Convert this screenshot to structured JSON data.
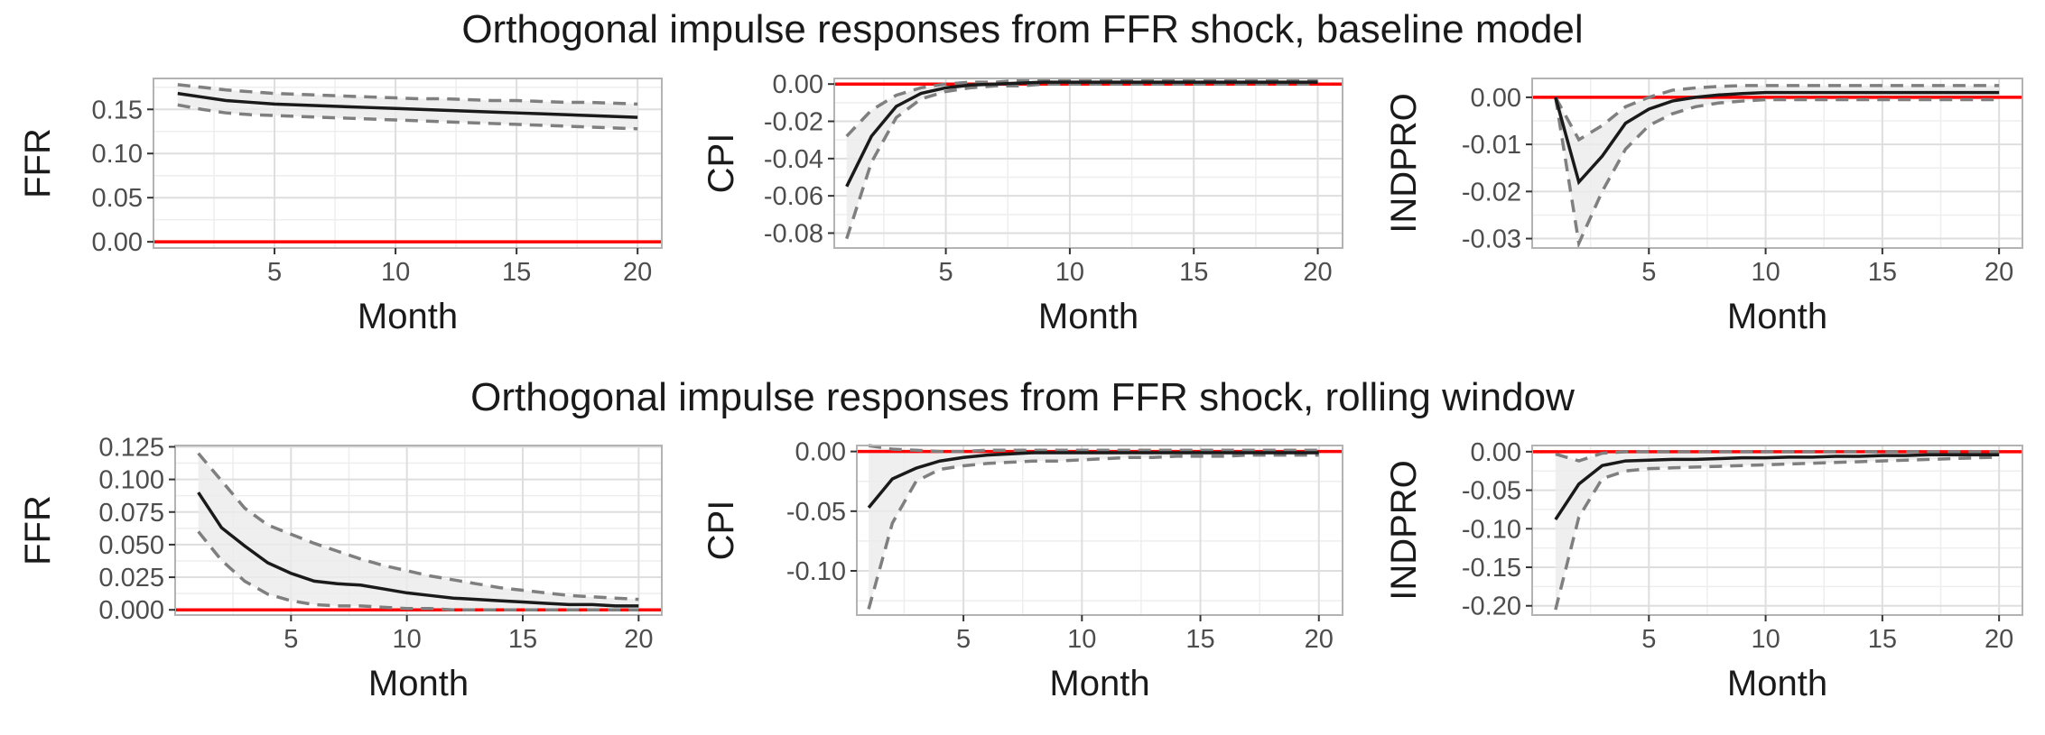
{
  "titles": {
    "top": "Orthogonal impulse responses from FFR shock, baseline model",
    "bottom": "Orthogonal impulse responses from FFR shock, rolling window"
  },
  "colors": {
    "panel_border": "#b3b3b3",
    "grid_major": "#dedede",
    "grid_minor": "#eeeeee",
    "band_fill": "#ebebeb",
    "response_line": "#1a1a1a",
    "ci_line": "#7f7f7f",
    "zero_line": "#ff0000"
  },
  "chart_data": [
    {
      "type": "line",
      "row": "top",
      "xlabel": "Month",
      "ylabel": "FFR",
      "xlim": [
        0,
        21
      ],
      "ylim": [
        -0.007,
        0.185
      ],
      "x_ticks": [
        5,
        10,
        15,
        20
      ],
      "x_tick_labels": [
        "5",
        "10",
        "15",
        "20"
      ],
      "y_ticks": [
        0,
        0.05,
        0.1,
        0.15
      ],
      "y_tick_labels": [
        "0.00",
        "0.05",
        "0.10",
        "0.15"
      ],
      "hline": 0,
      "x": [
        1,
        2,
        3,
        4,
        5,
        6,
        7,
        8,
        9,
        10,
        11,
        12,
        13,
        14,
        15,
        16,
        17,
        18,
        19,
        20
      ],
      "series": [
        {
          "role": "response",
          "values": [
            0.168,
            0.164,
            0.16,
            0.158,
            0.156,
            0.155,
            0.154,
            0.153,
            0.152,
            0.151,
            0.15,
            0.149,
            0.148,
            0.147,
            0.146,
            0.145,
            0.144,
            0.143,
            0.142,
            0.141
          ]
        },
        {
          "role": "upper",
          "values": [
            0.178,
            0.175,
            0.172,
            0.17,
            0.168,
            0.167,
            0.166,
            0.165,
            0.164,
            0.163,
            0.162,
            0.162,
            0.161,
            0.16,
            0.16,
            0.159,
            0.158,
            0.158,
            0.157,
            0.156
          ]
        },
        {
          "role": "lower",
          "values": [
            0.155,
            0.15,
            0.146,
            0.144,
            0.143,
            0.142,
            0.141,
            0.14,
            0.139,
            0.138,
            0.137,
            0.136,
            0.135,
            0.134,
            0.133,
            0.132,
            0.131,
            0.13,
            0.129,
            0.128
          ]
        }
      ]
    },
    {
      "type": "line",
      "row": "top",
      "xlabel": "Month",
      "ylabel": "CPI",
      "xlim": [
        0.5,
        21
      ],
      "ylim": [
        -0.088,
        0.003
      ],
      "x_ticks": [
        5,
        10,
        15,
        20
      ],
      "x_tick_labels": [
        "5",
        "10",
        "15",
        "20"
      ],
      "y_ticks": [
        -0.08,
        -0.06,
        -0.04,
        -0.02,
        0
      ],
      "y_tick_labels": [
        "-0.08",
        "-0.06",
        "-0.04",
        "-0.02",
        "0.00"
      ],
      "hline": 0,
      "x": [
        1,
        2,
        3,
        4,
        5,
        6,
        7,
        8,
        9,
        10,
        11,
        12,
        13,
        14,
        15,
        16,
        17,
        18,
        19,
        20
      ],
      "series": [
        {
          "role": "response",
          "values": [
            -0.055,
            -0.028,
            -0.012,
            -0.005,
            -0.002,
            -0.0005,
            0,
            0.0005,
            0.001,
            0.001,
            0.001,
            0.001,
            0.001,
            0.001,
            0.001,
            0.001,
            0.001,
            0.001,
            0.001,
            0.001
          ]
        },
        {
          "role": "upper",
          "values": [
            -0.028,
            -0.014,
            -0.006,
            -0.002,
            0,
            0.001,
            0.001,
            0.002,
            0.002,
            0.002,
            0.002,
            0.002,
            0.002,
            0.002,
            0.002,
            0.002,
            0.002,
            0.002,
            0.002,
            0.002
          ]
        },
        {
          "role": "lower",
          "values": [
            -0.083,
            -0.042,
            -0.018,
            -0.008,
            -0.004,
            -0.002,
            -0.001,
            -0.001,
            0,
            0,
            0,
            0,
            0,
            0,
            0,
            0,
            0,
            0,
            0,
            0
          ]
        }
      ]
    },
    {
      "type": "line",
      "row": "top",
      "xlabel": "Month",
      "ylabel": "INDPRO",
      "xlim": [
        0,
        21
      ],
      "ylim": [
        -0.032,
        0.004
      ],
      "x_ticks": [
        5,
        10,
        15,
        20
      ],
      "x_tick_labels": [
        "5",
        "10",
        "15",
        "20"
      ],
      "y_ticks": [
        -0.03,
        -0.02,
        -0.01,
        0
      ],
      "y_tick_labels": [
        "-0.03",
        "-0.02",
        "-0.01",
        "0.00"
      ],
      "hline": 0,
      "x": [
        1,
        2,
        3,
        4,
        5,
        6,
        7,
        8,
        9,
        10,
        11,
        12,
        13,
        14,
        15,
        16,
        17,
        18,
        19,
        20
      ],
      "series": [
        {
          "role": "response",
          "values": [
            0,
            -0.018,
            -0.0125,
            -0.0055,
            -0.0025,
            -0.0008,
            0,
            0.0005,
            0.0008,
            0.001,
            0.001,
            0.001,
            0.001,
            0.001,
            0.001,
            0.001,
            0.001,
            0.001,
            0.001,
            0.001
          ]
        },
        {
          "role": "upper",
          "values": [
            0,
            -0.009,
            -0.006,
            -0.002,
            0,
            0.0015,
            0.002,
            0.0023,
            0.0025,
            0.0025,
            0.0025,
            0.0025,
            0.0025,
            0.0025,
            0.0025,
            0.0025,
            0.0025,
            0.0025,
            0.0025,
            0.0025
          ]
        },
        {
          "role": "lower",
          "values": [
            0,
            -0.031,
            -0.02,
            -0.011,
            -0.006,
            -0.0035,
            -0.002,
            -0.0012,
            -0.0008,
            -0.0005,
            -0.0005,
            -0.0005,
            -0.0005,
            -0.0005,
            -0.0005,
            -0.0005,
            -0.0005,
            -0.0005,
            -0.0005,
            -0.0005
          ]
        }
      ]
    },
    {
      "type": "line",
      "row": "bottom",
      "xlabel": "Month",
      "ylabel": "FFR",
      "xlim": [
        0,
        21
      ],
      "ylim": [
        -0.004,
        0.126
      ],
      "x_ticks": [
        5,
        10,
        15,
        20
      ],
      "x_tick_labels": [
        "5",
        "10",
        "15",
        "20"
      ],
      "y_ticks": [
        0,
        0.025,
        0.05,
        0.075,
        0.1,
        0.125
      ],
      "y_tick_labels": [
        "0.000",
        "0.025",
        "0.050",
        "0.075",
        "0.100",
        "0.125"
      ],
      "hline": 0,
      "x": [
        1,
        2,
        3,
        4,
        5,
        6,
        7,
        8,
        9,
        10,
        11,
        12,
        13,
        14,
        15,
        16,
        17,
        18,
        19,
        20
      ],
      "series": [
        {
          "role": "response",
          "values": [
            0.09,
            0.063,
            0.049,
            0.036,
            0.028,
            0.022,
            0.02,
            0.019,
            0.016,
            0.013,
            0.011,
            0.009,
            0.008,
            0.007,
            0.006,
            0.005,
            0.004,
            0.004,
            0.003,
            0.003
          ]
        },
        {
          "role": "upper",
          "values": [
            0.12,
            0.099,
            0.078,
            0.065,
            0.058,
            0.051,
            0.045,
            0.039,
            0.034,
            0.03,
            0.026,
            0.023,
            0.02,
            0.017,
            0.015,
            0.013,
            0.011,
            0.01,
            0.009,
            0.008
          ]
        },
        {
          "role": "lower",
          "values": [
            0.06,
            0.038,
            0.022,
            0.012,
            0.007,
            0.004,
            0.003,
            0.003,
            0.002,
            0.001,
            0.001,
            0,
            0,
            0,
            0,
            0,
            0,
            0,
            0,
            0
          ]
        }
      ]
    },
    {
      "type": "line",
      "row": "bottom",
      "xlabel": "Month",
      "ylabel": "CPI",
      "xlim": [
        0.5,
        21
      ],
      "ylim": [
        -0.137,
        0.005
      ],
      "x_ticks": [
        5,
        10,
        15,
        20
      ],
      "x_tick_labels": [
        "5",
        "10",
        "15",
        "20"
      ],
      "y_ticks": [
        -0.1,
        -0.05,
        0
      ],
      "y_tick_labels": [
        "-0.10",
        "-0.05",
        "0.00"
      ],
      "hline": 0,
      "x": [
        1,
        2,
        3,
        4,
        5,
        6,
        7,
        8,
        9,
        10,
        11,
        12,
        13,
        14,
        15,
        16,
        17,
        18,
        19,
        20
      ],
      "series": [
        {
          "role": "response",
          "values": [
            -0.047,
            -0.023,
            -0.014,
            -0.008,
            -0.005,
            -0.003,
            -0.002,
            -0.001,
            -0.001,
            -0.001,
            -0.001,
            -0.001,
            -0.001,
            -0.001,
            -0.001,
            -0.001,
            -0.001,
            -0.001,
            -0.001,
            -0.001
          ]
        },
        {
          "role": "upper",
          "values": [
            0.005,
            0.002,
            0.001,
            0,
            0,
            0.001,
            0.001,
            0.001,
            0.001,
            0.001,
            0.001,
            0.001,
            0.001,
            0.001,
            0.001,
            0.001,
            0.001,
            0.001,
            0.001,
            0.001
          ]
        },
        {
          "role": "lower",
          "values": [
            -0.132,
            -0.06,
            -0.025,
            -0.015,
            -0.012,
            -0.01,
            -0.009,
            -0.008,
            -0.008,
            -0.007,
            -0.006,
            -0.005,
            -0.005,
            -0.004,
            -0.004,
            -0.004,
            -0.003,
            -0.003,
            -0.003,
            -0.003
          ]
        }
      ]
    },
    {
      "type": "line",
      "row": "bottom",
      "xlabel": "Month",
      "ylabel": "INDPRO",
      "xlim": [
        0,
        21
      ],
      "ylim": [
        -0.212,
        0.008
      ],
      "x_ticks": [
        5,
        10,
        15,
        20
      ],
      "x_tick_labels": [
        "5",
        "10",
        "15",
        "20"
      ],
      "y_ticks": [
        -0.2,
        -0.15,
        -0.1,
        -0.05,
        0
      ],
      "y_tick_labels": [
        "-0.20",
        "-0.15",
        "-0.10",
        "-0.05",
        "0.00"
      ],
      "hline": 0,
      "x": [
        1,
        2,
        3,
        4,
        5,
        6,
        7,
        8,
        9,
        10,
        11,
        12,
        13,
        14,
        15,
        16,
        17,
        18,
        19,
        20
      ],
      "series": [
        {
          "role": "response",
          "values": [
            -0.088,
            -0.042,
            -0.018,
            -0.012,
            -0.011,
            -0.01,
            -0.01,
            -0.009,
            -0.008,
            -0.008,
            -0.007,
            -0.007,
            -0.006,
            -0.006,
            -0.005,
            -0.005,
            -0.004,
            -0.004,
            -0.004,
            -0.004
          ]
        },
        {
          "role": "upper",
          "values": [
            -0.003,
            -0.012,
            -0.002,
            0,
            0,
            0,
            0,
            0,
            0,
            0,
            0,
            0,
            0,
            0,
            0,
            0,
            0,
            0,
            0,
            0
          ]
        },
        {
          "role": "lower",
          "values": [
            -0.205,
            -0.085,
            -0.035,
            -0.025,
            -0.022,
            -0.021,
            -0.02,
            -0.019,
            -0.018,
            -0.017,
            -0.016,
            -0.015,
            -0.014,
            -0.013,
            -0.012,
            -0.011,
            -0.01,
            -0.009,
            -0.008,
            -0.007
          ]
        }
      ]
    }
  ]
}
